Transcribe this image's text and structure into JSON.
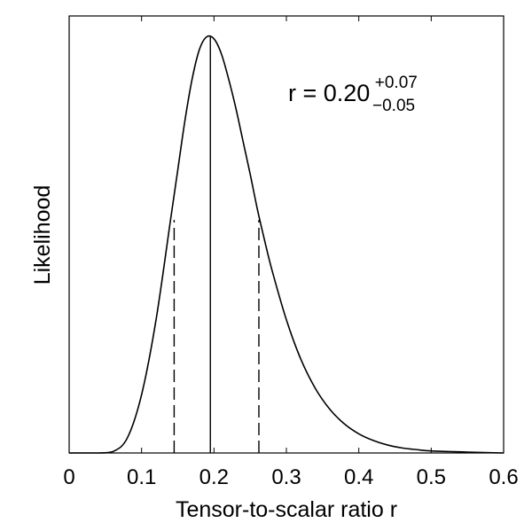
{
  "chart_data": {
    "type": "line",
    "title": "",
    "xlabel": "Tensor-to-scalar ratio r",
    "ylabel": "Likelihood",
    "xlim": [
      0,
      0.6
    ],
    "ylim": [
      0,
      1.05
    ],
    "xticks": [
      "0",
      "0.1",
      "0.2",
      "0.3",
      "0.4",
      "0.5",
      "0.6"
    ],
    "grid": false,
    "series": [
      {
        "x": [
          0.0,
          0.04,
          0.06,
          0.08,
          0.1,
          0.12,
          0.14,
          0.15,
          0.16,
          0.17,
          0.18,
          0.19,
          0.2,
          0.21,
          0.22,
          0.23,
          0.24,
          0.25,
          0.26,
          0.27,
          0.28,
          0.3,
          0.32,
          0.34,
          0.36,
          0.38,
          0.4,
          0.42,
          0.44,
          0.46,
          0.48,
          0.5,
          0.55,
          0.6
        ],
        "y": [
          0.0,
          0.0,
          0.003,
          0.035,
          0.14,
          0.32,
          0.56,
          0.68,
          0.8,
          0.9,
          0.97,
          1.0,
          0.995,
          0.96,
          0.9,
          0.83,
          0.75,
          0.67,
          0.585,
          0.51,
          0.44,
          0.32,
          0.225,
          0.155,
          0.105,
          0.07,
          0.046,
          0.03,
          0.019,
          0.012,
          0.008,
          0.005,
          0.002,
          0.0
        ]
      }
    ],
    "reference_lines": [
      {
        "x": 0.195,
        "y_top": 1.0,
        "style": "solid"
      },
      {
        "x": 0.145,
        "y_top": 0.56,
        "style": "dashed"
      },
      {
        "x": 0.262,
        "y_top": 0.56,
        "style": "dashed"
      }
    ],
    "annotation": {
      "base": "r = 0.20",
      "sup": "+0.07",
      "sub": "−0.05"
    }
  }
}
